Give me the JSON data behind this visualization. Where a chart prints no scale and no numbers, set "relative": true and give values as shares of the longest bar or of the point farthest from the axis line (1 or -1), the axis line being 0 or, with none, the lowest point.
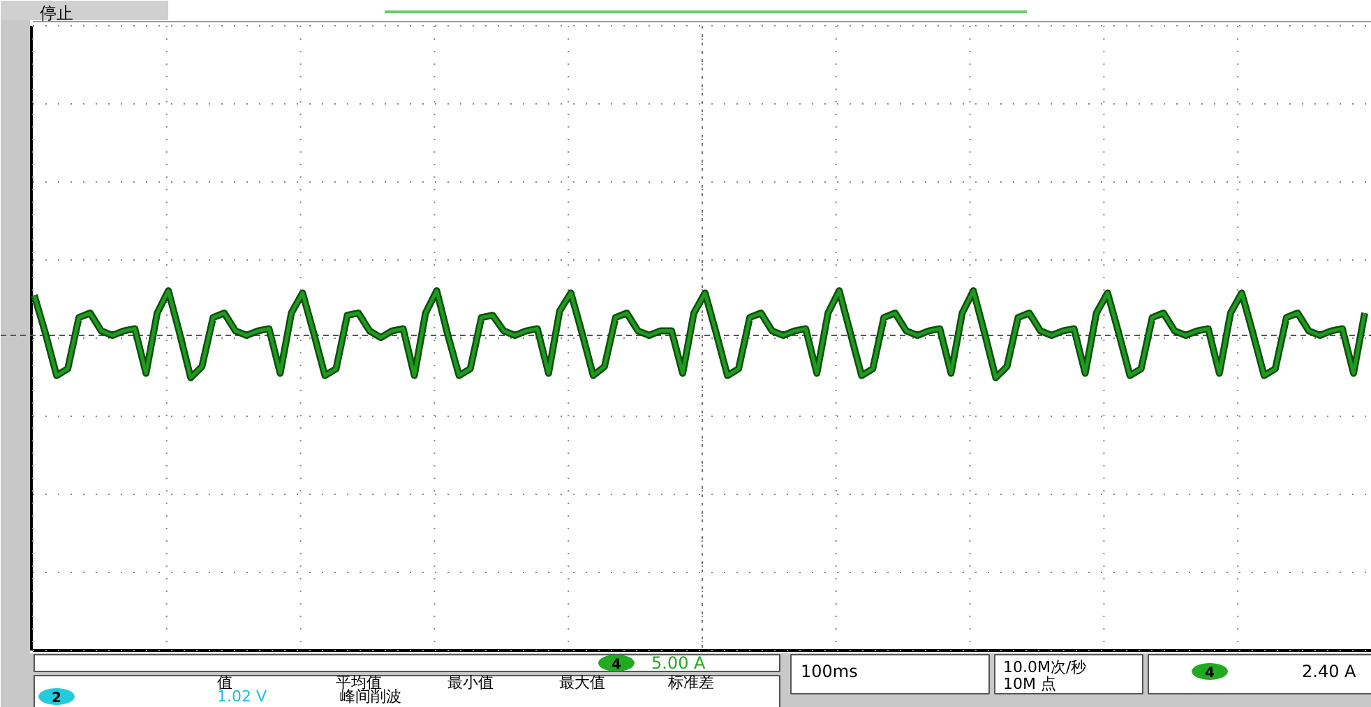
{
  "chart_data": {
    "type": "line",
    "relative": true,
    "grid": true,
    "categories": [
      null,
      null,
      null,
      null,
      null,
      null,
      null,
      null,
      null,
      null,
      null,
      null,
      null,
      null,
      null,
      null,
      null,
      null,
      null,
      null,
      null,
      null,
      null,
      null,
      null,
      null,
      null,
      null,
      null,
      null,
      null,
      null,
      null,
      null,
      null,
      null,
      null,
      null,
      null,
      null,
      null,
      null,
      null,
      null,
      null,
      null,
      null,
      null,
      null,
      null,
      null,
      null,
      null,
      null,
      null,
      null,
      null,
      null,
      null,
      null,
      null,
      null,
      null,
      null,
      null,
      null,
      null,
      null,
      null,
      null,
      null,
      null,
      null,
      null,
      null,
      null,
      null,
      null,
      null,
      null,
      null,
      null,
      null,
      null,
      null,
      null,
      null,
      null,
      null,
      null,
      null,
      null,
      null,
      null,
      null,
      null,
      null,
      null,
      null,
      null,
      null,
      null,
      null,
      null,
      null,
      null,
      null,
      null,
      null,
      null,
      null,
      null,
      null,
      null,
      null,
      null,
      null,
      null,
      null,
      null
    ],
    "series": [
      {
        "color": "#1f9a1f",
        "values": [
          0.9,
          0.05,
          -0.9,
          -0.75,
          0.4,
          0.5,
          0.1,
          0.0,
          0.1,
          0.15,
          -0.85,
          0.5,
          1.0,
          0.05,
          -0.95,
          -0.7,
          0.4,
          0.5,
          0.1,
          0.0,
          0.1,
          0.15,
          -0.85,
          0.5,
          0.95,
          0.05,
          -0.9,
          -0.75,
          0.45,
          0.5,
          0.1,
          -0.05,
          0.1,
          0.15,
          -0.9,
          0.5,
          1.0,
          0.0,
          -0.9,
          -0.75,
          0.4,
          0.45,
          0.1,
          0.0,
          0.1,
          0.15,
          -0.85,
          0.55,
          0.95,
          0.05,
          -0.9,
          -0.7,
          0.4,
          0.5,
          0.1,
          0.0,
          0.1,
          0.1,
          -0.85,
          0.5,
          0.95,
          0.05,
          -0.9,
          -0.75,
          0.4,
          0.5,
          0.1,
          0.0,
          0.1,
          0.15,
          -0.85,
          0.5,
          1.0,
          0.05,
          -0.9,
          -0.75,
          0.4,
          0.5,
          0.1,
          0.0,
          0.1,
          0.15,
          -0.85,
          0.5,
          1.0,
          0.05,
          -0.95,
          -0.7,
          0.4,
          0.5,
          0.1,
          0.0,
          0.1,
          0.15,
          -0.85,
          0.5,
          0.95,
          0.05,
          -0.9,
          -0.75,
          0.4,
          0.5,
          0.1,
          0.0,
          0.1,
          0.15,
          -0.85,
          0.5,
          0.95,
          0.05,
          -0.9,
          -0.75,
          0.4,
          0.5,
          0.1,
          0.0,
          0.1,
          0.15,
          -0.85,
          0.5
        ]
      }
    ],
    "ref_lines": [
      {
        "axis": "y",
        "value": 0,
        "line_style": "dashed",
        "color": "#555555"
      }
    ],
    "annotations": [
      "停止",
      "4",
      "5.00 A",
      "100ms",
      "10.0M次/秒",
      "10M 点",
      "4",
      "2.40 A",
      "值",
      "平均值",
      "最小值",
      "最大值",
      "标准差",
      "2",
      "1.02 V",
      "峰间削波"
    ]
  }
}
